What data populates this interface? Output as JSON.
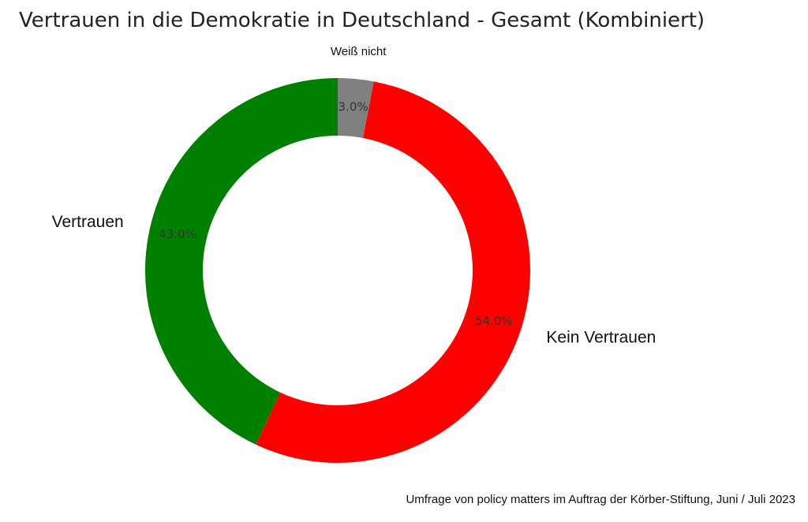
{
  "chart_data": {
    "type": "pie",
    "title": "Vertrauen in die Demokratie in Deutschland - Gesamt (Kombiniert)",
    "donut": true,
    "slices": [
      {
        "label": "Weiß nicht",
        "value": 3.0,
        "value_label": "3.0%",
        "color": "#808080"
      },
      {
        "label": "Kein Vertrauen",
        "value": 54.0,
        "value_label": "54.0%",
        "color": "#ff0000"
      },
      {
        "label": "Vertrauen",
        "value": 43.0,
        "value_label": "43.0%",
        "color": "#008000"
      }
    ],
    "start_angle": "top",
    "direction": "clockwise",
    "source_note": "Umfrage von policy matters im Auftrag der Körber-Stiftung, Juni / Juli 2023"
  }
}
